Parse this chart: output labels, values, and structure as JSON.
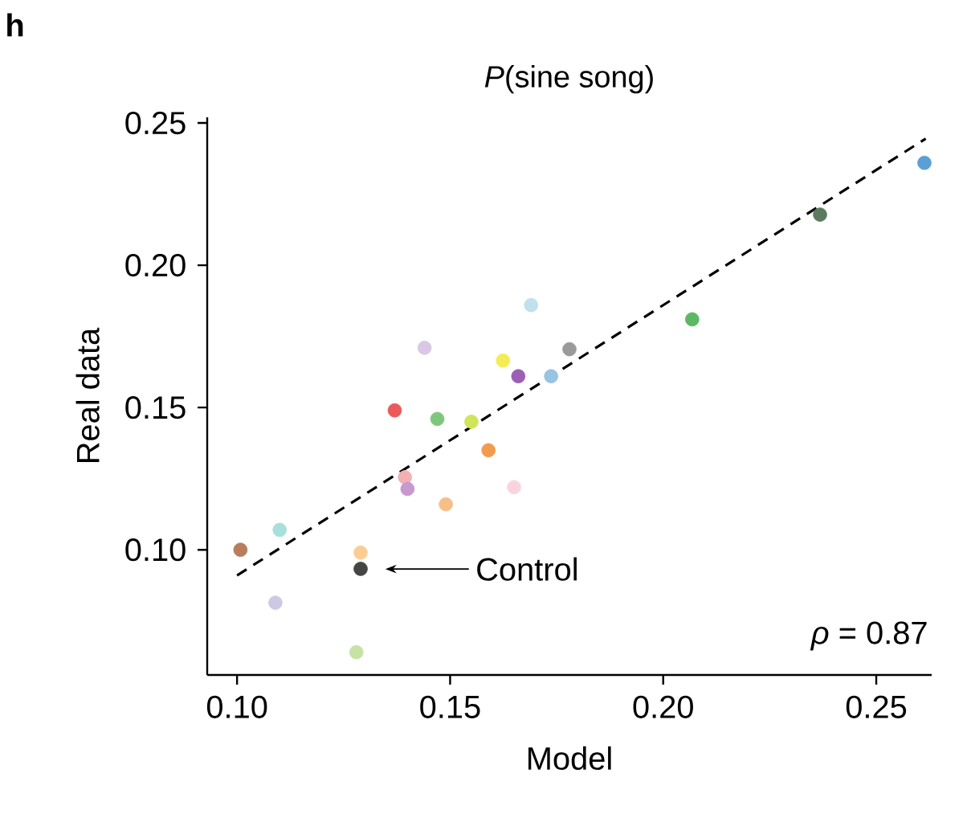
{
  "chart_data": {
    "type": "scatter",
    "title": "*P*(sine song)",
    "xlabel": "Model",
    "ylabel": "Real data",
    "xlim": [
      0.093,
      0.263
    ],
    "ylim": [
      0.056,
      0.252
    ],
    "xticks": [
      {
        "value": 0.1,
        "label": "0.10"
      },
      {
        "value": 0.15,
        "label": "0.15"
      },
      {
        "value": 0.2,
        "label": "0.20"
      },
      {
        "value": 0.25,
        "label": "0.25"
      }
    ],
    "yticks": [
      {
        "value": 0.1,
        "label": "0.10"
      },
      {
        "value": 0.15,
        "label": "0.15"
      },
      {
        "value": 0.2,
        "label": "0.20"
      },
      {
        "value": 0.25,
        "label": "0.25"
      }
    ],
    "grid": false,
    "series": [
      {
        "x": [
          0.1008,
          0.11,
          0.109,
          0.128,
          0.129,
          0.129,
          0.137,
          0.1394,
          0.14,
          0.144,
          0.147,
          0.149,
          0.155,
          0.159,
          0.165,
          0.1624,
          0.166,
          0.169,
          0.1737,
          0.178,
          0.2068,
          0.2368,
          0.2613
        ],
        "values": [
          0.1,
          0.107,
          0.0814,
          0.064,
          0.099,
          0.0933,
          0.149,
          0.1255,
          0.1214,
          0.171,
          0.146,
          0.116,
          0.145,
          0.135,
          0.122,
          0.1665,
          0.161,
          0.186,
          0.161,
          0.1705,
          0.181,
          0.2178,
          0.236
        ],
        "colors": [
          "#b87d5b",
          "#a9dfdb",
          "#cdc9e3",
          "#c5e3a5",
          "#fbcd95",
          "#454545",
          "#ea5a5a",
          "#f3b0b3",
          "#c69ad0",
          "#d8c8e5",
          "#7ec67e",
          "#f7be88",
          "#d2e45a",
          "#f29a4d",
          "#f9d4df",
          "#f4ec54",
          "#9b5fb5",
          "#bfe0ec",
          "#98c3e2",
          "#9a9a9a",
          "#5cb865",
          "#5b7b5e",
          "#5c9fd4"
        ]
      },
      {
        "type": "line",
        "line_style": "dashed",
        "marker": "none",
        "color": "#000000",
        "x": [
          0.1,
          0.2616
        ],
        "values": [
          0.091,
          0.2445
        ]
      }
    ],
    "annotations": [
      "h",
      "Control",
      "*ρ* = 0.87"
    ]
  }
}
